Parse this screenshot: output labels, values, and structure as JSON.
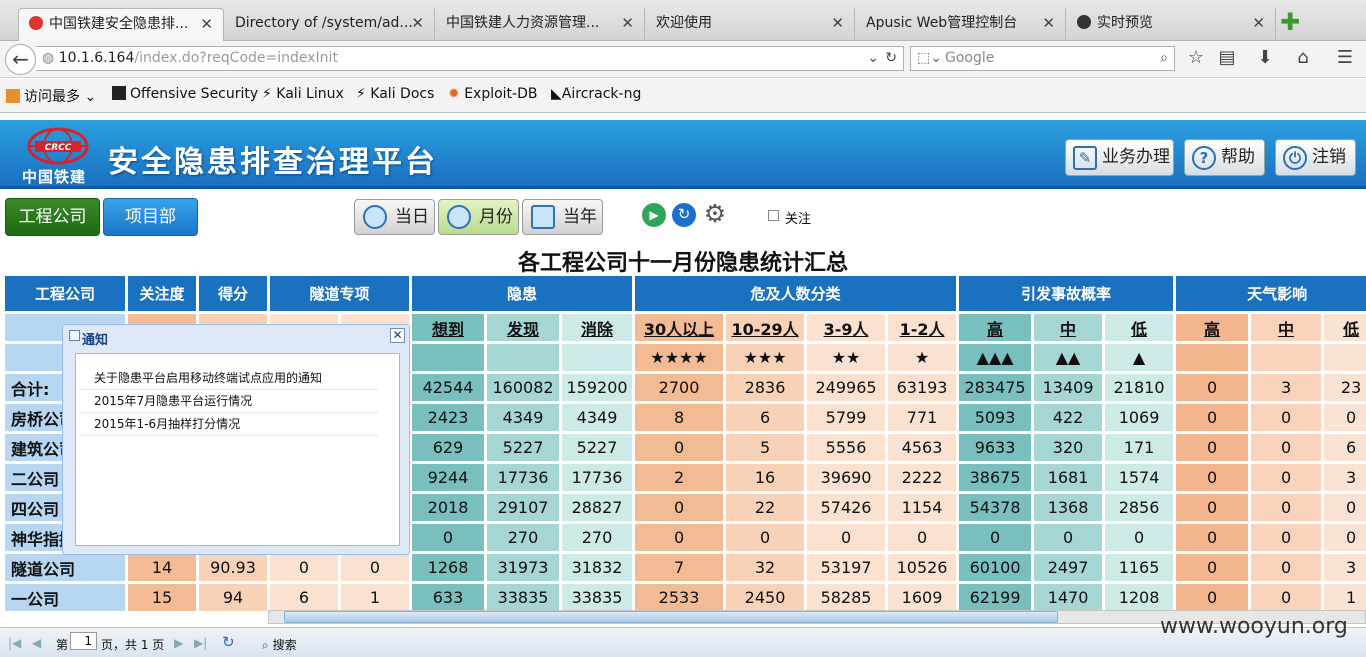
{
  "browser": {
    "tabs": [
      {
        "label": "中国铁建安全隐患排..."
      },
      {
        "label": "Directory of /system/ad..."
      },
      {
        "label": "中国铁建人力资源管理..."
      },
      {
        "label": "欢迎使用"
      },
      {
        "label": "Apusic Web管理控制台"
      },
      {
        "label": "实时预览"
      }
    ],
    "url_host": "10.1.6.164",
    "url_path": "/index.do?reqCode=indexInit",
    "search_placeholder": "Google",
    "bookmarks": [
      "访问最多",
      "Offensive Security",
      "Kali Linux",
      "Kali Docs",
      "Exploit-DB",
      "Aircrack-ng"
    ]
  },
  "app": {
    "logo_text": "中国铁建",
    "title": "安全隐患排查治理平台",
    "header_buttons": {
      "business": "业务办理",
      "help": "帮助",
      "logout": "注销"
    }
  },
  "toolbar": {
    "company_tab": "工程公司",
    "project_tab": "项目部",
    "period_day": "当日",
    "period_month": "月份",
    "period_year": "当年",
    "follow_label": "关注"
  },
  "report": {
    "title": "各工程公司十一月份隐患统计汇总",
    "groups": [
      "工程公司",
      "关注度",
      "得分",
      "隧道专项",
      "隐患",
      "危及人数分类",
      "引发事故概率",
      "天气影响"
    ],
    "sub_hidden": [
      "想到",
      "发现",
      "消除"
    ],
    "sub_people": [
      "30人以上",
      "10-29人",
      "3-9人",
      "1-2人"
    ],
    "sub_prob": [
      "高",
      "中",
      "低"
    ],
    "sub_weather": [
      "高",
      "中",
      "低"
    ],
    "people_stars": [
      "★★★★",
      "★★★",
      "★★",
      "★"
    ],
    "prob_marks": [
      "▲▲▲",
      "▲▲",
      "▲"
    ],
    "rows": [
      {
        "name": "合计:",
        "cells": [
          "",
          "",
          "",
          "",
          "42544",
          "160082",
          "159200",
          "2700",
          "2836",
          "249965",
          "63193",
          "283475",
          "13409",
          "21810",
          "0",
          "3",
          "23"
        ]
      },
      {
        "name": "房桥公司",
        "cells": [
          "",
          "",
          "",
          "",
          "2423",
          "4349",
          "4349",
          "8",
          "6",
          "5799",
          "771",
          "5093",
          "422",
          "1069",
          "0",
          "0",
          "0"
        ]
      },
      {
        "name": "建筑公司",
        "cells": [
          "",
          "",
          "",
          "",
          "629",
          "5227",
          "5227",
          "0",
          "5",
          "5556",
          "4563",
          "9633",
          "320",
          "171",
          "0",
          "0",
          "6"
        ]
      },
      {
        "name": "二公司",
        "cells": [
          "",
          "",
          "",
          "",
          "9244",
          "17736",
          "17736",
          "2",
          "16",
          "39690",
          "2222",
          "38675",
          "1681",
          "1574",
          "0",
          "0",
          "3"
        ]
      },
      {
        "name": "四公司",
        "cells": [
          "",
          "",
          "",
          "",
          "2018",
          "29107",
          "28827",
          "0",
          "22",
          "57426",
          "1154",
          "54378",
          "1368",
          "2856",
          "0",
          "0",
          "0"
        ]
      },
      {
        "name": "神华指挥",
        "cells": [
          "",
          "",
          "",
          "",
          "0",
          "270",
          "270",
          "0",
          "0",
          "0",
          "0",
          "0",
          "0",
          "0",
          "0",
          "0",
          "0"
        ]
      },
      {
        "name": "隧道公司",
        "cells": [
          "14",
          "90.93",
          "0",
          "0",
          "1268",
          "31973",
          "31832",
          "7",
          "32",
          "53197",
          "10526",
          "60100",
          "2497",
          "1165",
          "0",
          "0",
          "3"
        ]
      },
      {
        "name": "一公司",
        "cells": [
          "15",
          "94",
          "6",
          "1",
          "633",
          "33835",
          "33835",
          "2533",
          "2450",
          "58285",
          "1609",
          "62199",
          "1470",
          "1208",
          "0",
          "0",
          "1"
        ]
      }
    ]
  },
  "notice": {
    "title": "通知",
    "items": [
      "关于隐患平台启用移动终端试点应用的通知",
      "2015年7月隐患平台运行情况",
      "2015年1-6月抽样打分情况"
    ]
  },
  "pager": {
    "page_prefix": "第",
    "page_value": "1",
    "page_suffix": "页，共 1 页",
    "search": "搜索"
  },
  "watermark": "www.wooyun.org"
}
